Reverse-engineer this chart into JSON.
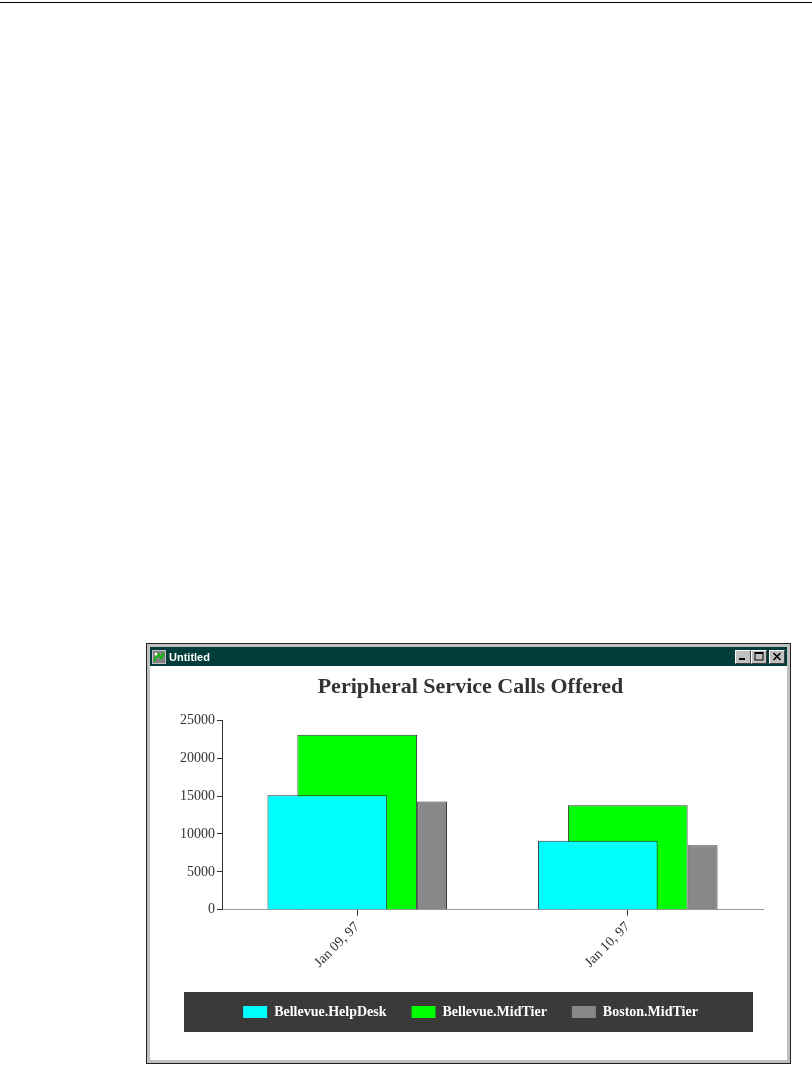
{
  "chart_data": {
    "type": "bar",
    "title": "Peripheral Service Calls Offered",
    "categories": [
      "Jan 09, 97",
      "Jan 10, 97"
    ],
    "series": [
      {
        "name": "Bellevue.HelpDesk",
        "color": "#00ffff",
        "values": [
          15100,
          9100
        ]
      },
      {
        "name": "Bellevue.MidTier",
        "color": "#00ff00",
        "values": [
          23100,
          13800
        ]
      },
      {
        "name": "Boston.MidTier",
        "color": "#888888",
        "values": [
          14300,
          8500
        ]
      }
    ],
    "ylim": [
      0,
      25000
    ],
    "yticks": [
      0,
      5000,
      10000,
      15000,
      20000,
      25000
    ],
    "grid": false,
    "legend": "bottom",
    "annotations": [
      "Untitled"
    ]
  }
}
